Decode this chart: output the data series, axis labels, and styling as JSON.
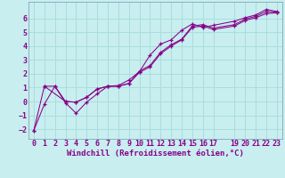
{
  "background_color": "#c8eef0",
  "grid_color": "#aadddd",
  "line_color": "#880088",
  "marker": "+",
  "xlabel": "Windchill (Refroidissement éolien,°C)",
  "xlabel_fontsize": 6.5,
  "tick_fontsize": 6,
  "xlim": [
    -0.5,
    23.5
  ],
  "ylim": [
    -2.7,
    7.2
  ],
  "yticks": [
    -2,
    -1,
    0,
    1,
    2,
    3,
    4,
    5,
    6
  ],
  "xticks": [
    0,
    1,
    2,
    3,
    4,
    5,
    6,
    7,
    8,
    9,
    10,
    11,
    12,
    13,
    14,
    15,
    16,
    17,
    19,
    20,
    21,
    22,
    23
  ],
  "line1_x": [
    0,
    1,
    2,
    3,
    4,
    5,
    6,
    7,
    8,
    9,
    10,
    11,
    12,
    13,
    14,
    15,
    16,
    17,
    19,
    20,
    21,
    22,
    23
  ],
  "line1_y": [
    -2.1,
    -0.2,
    1.1,
    -0.1,
    -0.85,
    -0.05,
    0.55,
    1.1,
    1.15,
    1.55,
    2.15,
    3.35,
    4.15,
    4.45,
    5.15,
    5.6,
    5.35,
    5.5,
    5.8,
    6.05,
    6.25,
    6.65,
    6.5
  ],
  "line2_x": [
    1,
    3,
    4,
    5,
    6,
    7,
    8,
    9,
    10,
    11,
    12,
    13,
    14,
    15,
    16,
    17,
    19,
    20,
    21,
    22,
    23
  ],
  "line2_y": [
    1.1,
    0.0,
    -0.05,
    0.3,
    0.9,
    1.1,
    1.1,
    1.3,
    2.2,
    2.6,
    3.55,
    4.1,
    4.5,
    5.45,
    5.55,
    5.3,
    5.55,
    5.95,
    6.15,
    6.5,
    6.45
  ],
  "line3_x": [
    0,
    1,
    2,
    3,
    4,
    5,
    6,
    7,
    8,
    9,
    10,
    11,
    12,
    13,
    14,
    15,
    16,
    17,
    19,
    20,
    21,
    22,
    23
  ],
  "line3_y": [
    -2.1,
    1.1,
    1.1,
    0.0,
    -0.05,
    0.3,
    0.9,
    1.1,
    1.1,
    1.3,
    2.1,
    2.5,
    3.45,
    4.0,
    4.45,
    5.35,
    5.45,
    5.2,
    5.45,
    5.85,
    6.05,
    6.35,
    6.4
  ]
}
